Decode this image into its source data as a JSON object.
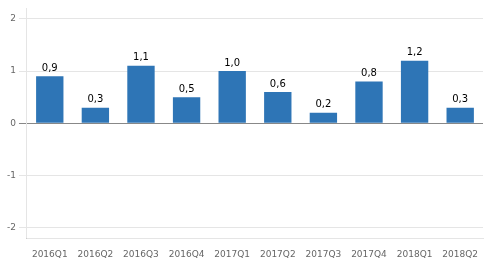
{
  "chart_data": {
    "type": "bar",
    "categories": [
      "2016Q1",
      "2016Q2",
      "2016Q3",
      "2016Q4",
      "2017Q1",
      "2017Q2",
      "2017Q3",
      "2017Q4",
      "2018Q1",
      "2018Q2"
    ],
    "values": [
      0.9,
      0.3,
      1.1,
      0.5,
      1.0,
      0.6,
      0.2,
      0.8,
      1.2,
      0.3
    ],
    "value_labels": [
      "0,9",
      "0,3",
      "1,1",
      "0,5",
      "1,0",
      "0,6",
      "0,2",
      "0,8",
      "1,2",
      "0,3"
    ],
    "color": "#2E75B6",
    "ylim": [
      -2.2,
      2.2
    ],
    "yticks": [
      -2,
      -1,
      0,
      1,
      2
    ],
    "grid": true,
    "data_labels": true
  }
}
